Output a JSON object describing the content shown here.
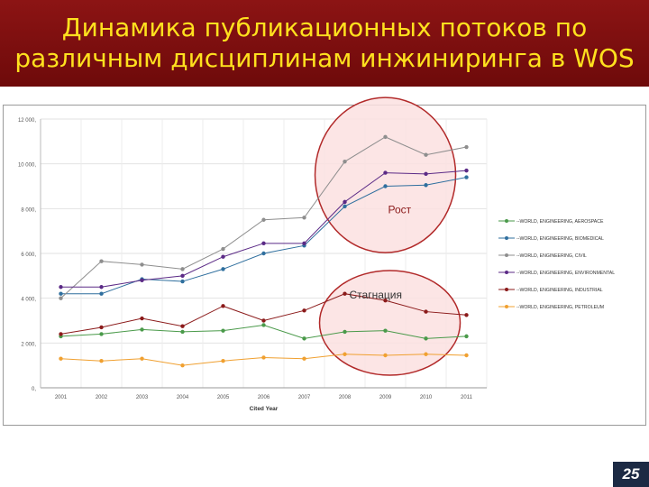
{
  "header": {
    "title_line1": "Динамика публикационных потоков по",
    "title_line2": "различным дисциплинам инжиниринга  в WOS"
  },
  "callouts": {
    "growth": "Рост",
    "stagnation": "Стагнация"
  },
  "page_number": "25",
  "colors": {
    "header_bg": "#7a0e0e",
    "title_text": "#ffe11e",
    "highlight_fill": "#fbe0e0",
    "highlight_stroke": "#b22a2a"
  },
  "chart_data": {
    "type": "line",
    "x": [
      "2001",
      "2002",
      "2003",
      "2004",
      "2005",
      "2006",
      "2007",
      "2008",
      "2009",
      "2010",
      "2011"
    ],
    "xlabel": "Cited Year",
    "ylabel": "",
    "ylim": [
      0,
      12000
    ],
    "yticks": [
      "0,",
      "2 000,",
      "4 000,",
      "6 000,",
      "8 000,",
      "10 000,",
      "12 000,"
    ],
    "grid": true,
    "legend_position": "right",
    "series": [
      {
        "name": "--WORLD, ENGINEERING, AEROSPACE",
        "color": "#4a9a4a",
        "values": [
          2300,
          2400,
          2600,
          2500,
          2550,
          2800,
          2200,
          2500,
          2550,
          2200,
          2300
        ]
      },
      {
        "name": "--WORLD, ENGINEERING, BIOMEDICAL",
        "color": "#2f6f9e",
        "values": [
          4200,
          4200,
          4850,
          4750,
          5300,
          6000,
          6350,
          8100,
          9000,
          9050,
          9400
        ]
      },
      {
        "name": "--WORLD, ENGINEERING, CIVIL",
        "color": "#8e8e8e",
        "values": [
          4000,
          5650,
          5500,
          5300,
          6200,
          7500,
          7600,
          10100,
          11200,
          10400,
          10750
        ]
      },
      {
        "name": "--WORLD, ENGINEERING, ENVIRONMENTAL",
        "color": "#5b2a86",
        "values": [
          4500,
          4500,
          4800,
          5000,
          5850,
          6450,
          6450,
          8300,
          9600,
          9550,
          9700
        ]
      },
      {
        "name": "--WORLD, ENGINEERING, INDUSTRIAL",
        "color": "#8b1a1a",
        "values": [
          2400,
          2700,
          3100,
          2750,
          3650,
          3000,
          3450,
          4200,
          3900,
          3400,
          3250
        ]
      },
      {
        "name": "--WORLD, ENGINEERING, PETROLEUM",
        "color": "#f0a030",
        "values": [
          1300,
          1200,
          1300,
          1000,
          1200,
          1350,
          1300,
          1500,
          1450,
          1500,
          1450
        ]
      }
    ]
  }
}
